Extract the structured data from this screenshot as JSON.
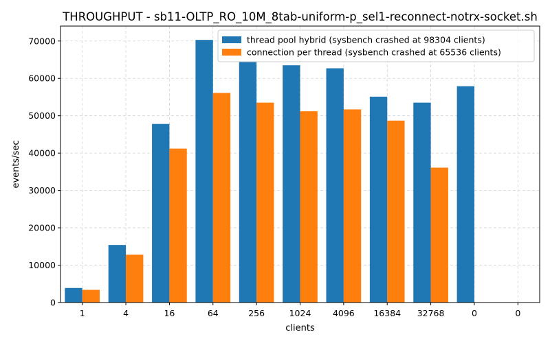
{
  "chart_data": {
    "type": "bar",
    "title": "THROUGHPUT - sb11-OLTP_RO_10M_8tab-uniform-p_sel1-reconnect-notrx-socket.sh",
    "xlabel": "clients",
    "ylabel": "events/sec",
    "categories": [
      "1",
      "4",
      "16",
      "64",
      "256",
      "1024",
      "4096",
      "16384",
      "32768",
      "0",
      "0"
    ],
    "ylim": [
      0,
      74000
    ],
    "yticks": [
      0,
      10000,
      20000,
      30000,
      40000,
      50000,
      60000,
      70000
    ],
    "grid": true,
    "legend_position": "top-right",
    "series": [
      {
        "name": "thread pool hybrid (sysbench crashed at 98304 clients)",
        "color": "#1f77b4",
        "values": [
          3900,
          15400,
          47800,
          70300,
          64600,
          63500,
          62700,
          55100,
          53500,
          57900,
          null
        ]
      },
      {
        "name": "connection per thread (sysbench crashed at 65536 clients)",
        "color": "#ff7f0e",
        "values": [
          3400,
          12800,
          41200,
          56100,
          53500,
          51200,
          51700,
          48700,
          36100,
          null,
          null
        ]
      }
    ]
  }
}
